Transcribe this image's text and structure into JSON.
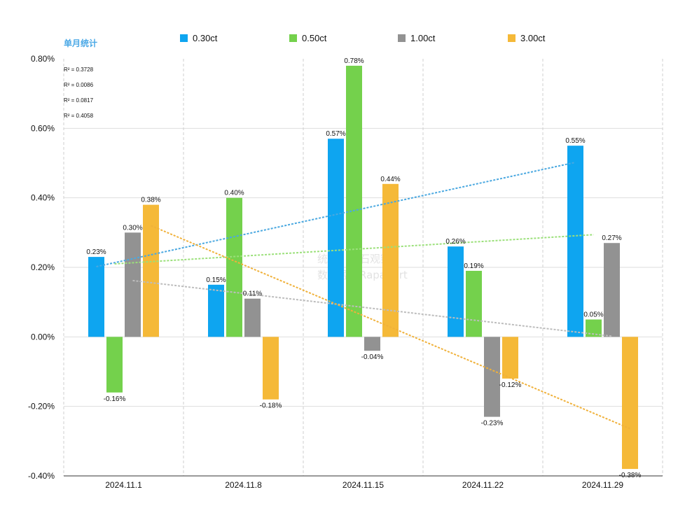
{
  "chart_data": {
    "type": "bar",
    "title": "单月统计",
    "categories": [
      "2024.11.1",
      "2024.11.8",
      "2024.11.15",
      "2024.11.22",
      "2024.11.29"
    ],
    "series": [
      {
        "name": "0.30ct",
        "color": "#0ea5f0",
        "values": [
          0.23,
          0.15,
          0.57,
          0.26,
          0.55
        ],
        "labels": [
          "0.23%",
          "0.15%",
          "0.57%",
          "0.26%",
          "0.55%"
        ],
        "r2": "R² = 0.3728",
        "trend_color": "#4aa8e0"
      },
      {
        "name": "0.50ct",
        "color": "#74d14c",
        "values": [
          -0.16,
          0.4,
          0.78,
          0.19,
          0.05
        ],
        "labels": [
          "-0.16%",
          "0.40%",
          "0.78%",
          "0.19%",
          "0.05%"
        ],
        "r2": "R² = 0.0086",
        "trend_color": "#9be07a"
      },
      {
        "name": "1.00ct",
        "color": "#929292",
        "values": [
          0.3,
          0.11,
          -0.04,
          -0.23,
          0.27
        ],
        "labels": [
          "0.30%",
          "0.11%",
          "-0.04%",
          "-0.23%",
          "0.27%"
        ],
        "r2": "R² = 0.0817",
        "trend_color": "#bdbdbd"
      },
      {
        "name": "3.00ct",
        "color": "#f5b938",
        "values": [
          0.38,
          -0.18,
          0.44,
          -0.12,
          -0.38
        ],
        "labels": [
          "0.38%",
          "-0.18%",
          "0.44%",
          "-0.12%",
          "-0.38%"
        ],
        "r2": "R² = 0.4058",
        "trend_color": "#f0b13a"
      }
    ],
    "y_ticks": [
      "0.80%",
      "0.60%",
      "0.40%",
      "0.20%",
      "0.00%",
      "-0.20%",
      "-0.40%"
    ],
    "ylim": [
      -0.4,
      0.8
    ],
    "y_unit": "%",
    "grid": true,
    "legend_position": "top",
    "trendlines": "linear, dotted"
  },
  "watermark": {
    "line1": "统计：钻石观察",
    "line2": "数据源：Rapaport"
  }
}
